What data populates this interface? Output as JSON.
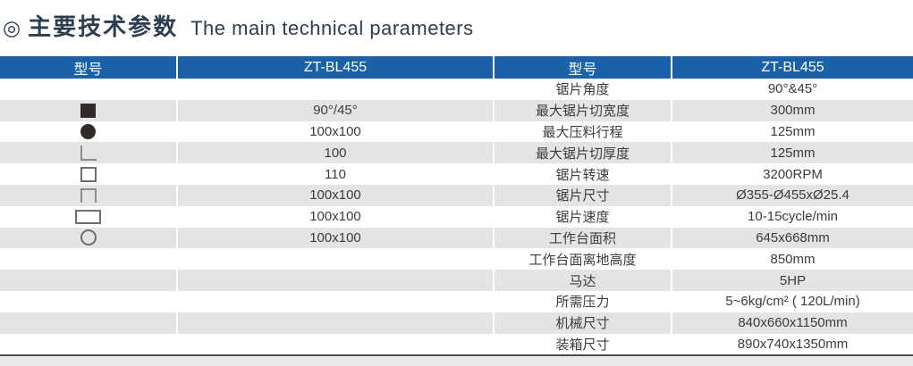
{
  "title": {
    "bullet": "◎",
    "zh": "主要技术参数",
    "en": "The main technical parameters"
  },
  "colors": {
    "title_text": "#2c3e50",
    "header_bg": "#1a61a9",
    "header_text": "#ffffff",
    "row_alt_bg": "#e4e4e4",
    "body_text": "#3c3c3c",
    "shape_fill": "#322a26",
    "shape_outline": "#6e6e6e",
    "bottom_line": "#4d4d4d"
  },
  "table": {
    "headers": [
      "型号",
      "ZT-BL455",
      "型号",
      "ZT-BL455"
    ],
    "rows": [
      {
        "icon": null,
        "capacity": "",
        "param": "锯片角度",
        "value": "90°&45°"
      },
      {
        "icon": "solid-square-icon",
        "capacity": "90°/45°",
        "param": "最大锯片切宽度",
        "value": "300mm"
      },
      {
        "icon": "solid-circle-icon",
        "capacity": "100x100",
        "param": "最大压料行程",
        "value": "125mm"
      },
      {
        "icon": "angle-icon",
        "capacity": "100",
        "param": "最大锯片切厚度",
        "value": "125mm"
      },
      {
        "icon": "square-tube-icon",
        "capacity": "110",
        "param": "锯片转速",
        "value": "3200RPM"
      },
      {
        "icon": "channel-icon",
        "capacity": "100x100",
        "param": "锯片尺寸",
        "value": "Ø355-Ø455xØ25.4"
      },
      {
        "icon": "rect-tube-icon",
        "capacity": "100x100",
        "param": "锯片速度",
        "value": "10-15cycle/min"
      },
      {
        "icon": "round-tube-icon",
        "capacity": "100x100",
        "param": "工作台面积",
        "value": "645x668mm"
      },
      {
        "icon": null,
        "capacity": "",
        "param": "工作台面离地高度",
        "value": "850mm"
      },
      {
        "icon": null,
        "capacity": "",
        "param": "马达",
        "value": "5HP"
      },
      {
        "icon": null,
        "capacity": "",
        "param": "所需压力",
        "value": "5~6kg/cm² ( 120L/min)"
      },
      {
        "icon": null,
        "capacity": "",
        "param": "机械尺寸",
        "value": "840x660x1150mm"
      },
      {
        "icon": null,
        "capacity": "",
        "param": "装箱尺寸",
        "value": "890x740x1350mm"
      }
    ]
  }
}
